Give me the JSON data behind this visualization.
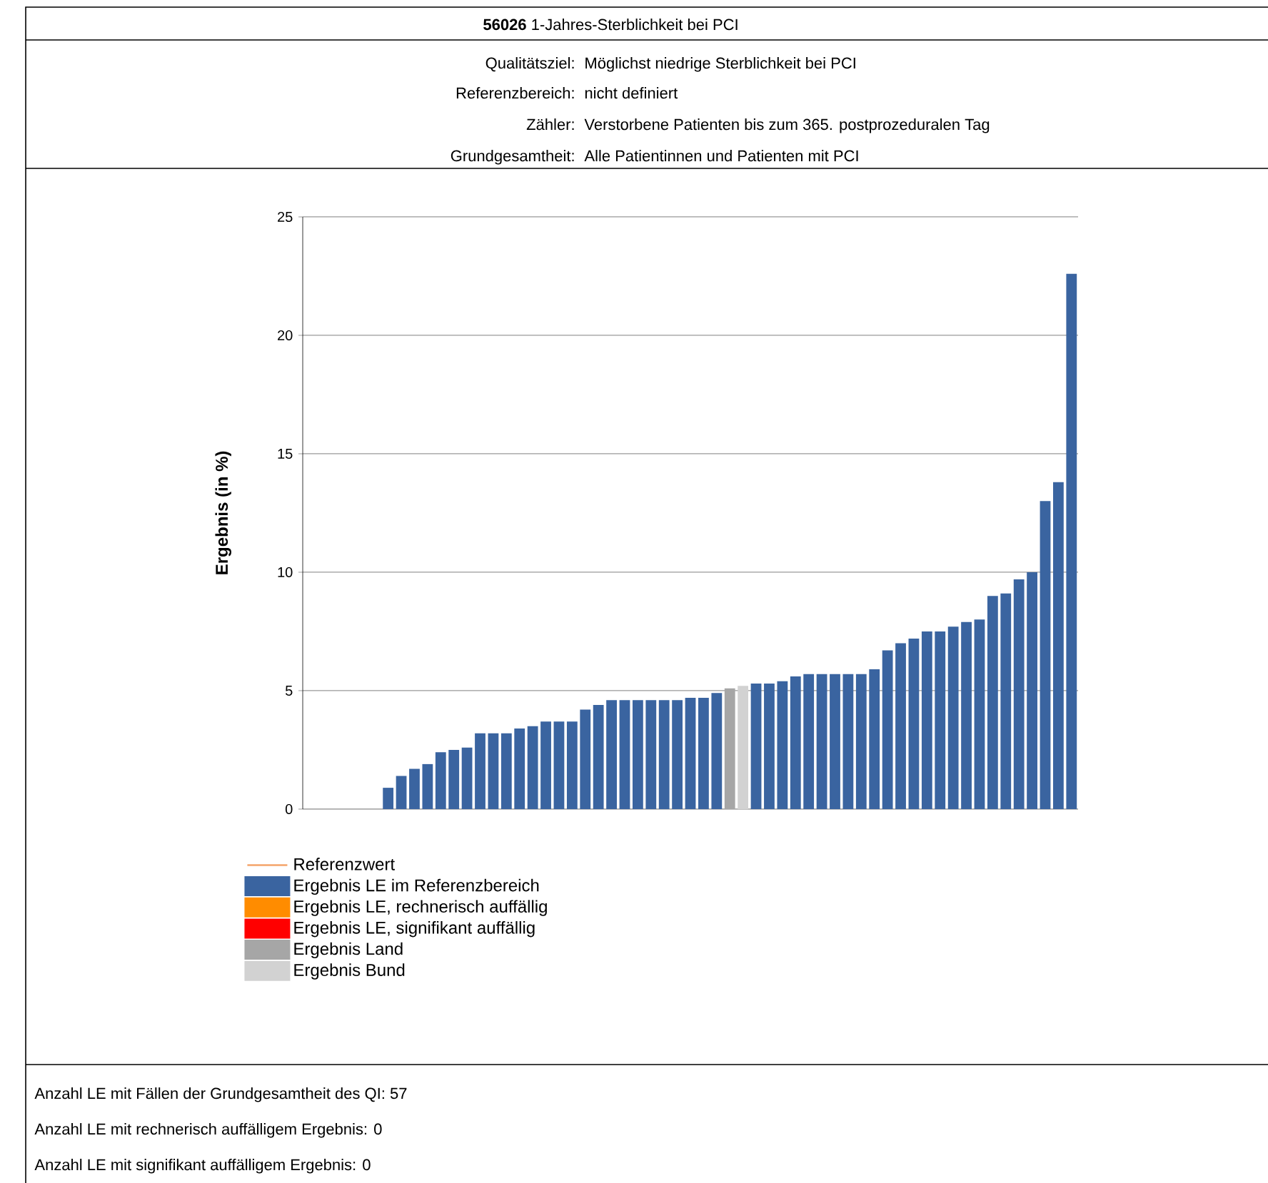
{
  "chart_data": {
    "type": "bar",
    "title": "**56026** 1-Jahres-Sterblichkeit bei PCI",
    "ylabel": "Ergebnis (in %)",
    "annotations": [
      "Qualitätsziel:",
      "Möglichst niedrige Sterblichkeit bei PCI",
      "Referenzbereich:",
      "nicht definiert",
      "Zähler:",
      "Verstorbene Patienten bis zum 365. postprozeduralen Tag",
      "Grundgesamtheit:",
      "Alle Patientinnen und Patienten mit PCI",
      "Anzahl LE mit Fällen der Grundgesamtheit des QI: 57",
      "Anzahl LE mit rechnerisch auffälligem Ergebnis: 0",
      "Anzahl LE mit signifikant auffälligem Ergebnis: 0"
    ],
    "categories": [
      null,
      null,
      null,
      null,
      null,
      null,
      null,
      null,
      null,
      null,
      null,
      null,
      null,
      null,
      null,
      null,
      null,
      null,
      null,
      null,
      null,
      null,
      null,
      null,
      null,
      null,
      null,
      null,
      null,
      null,
      null,
      null,
      null,
      null,
      null,
      null,
      null,
      null,
      null,
      null,
      null,
      null,
      null,
      null,
      null,
      null,
      null,
      null,
      null,
      null,
      null,
      null,
      null,
      null,
      null,
      null,
      null,
      null,
      null
    ],
    "series": [
      {
        "name": "Referenzwert",
        "type": "line",
        "color": "#f4a46a",
        "values": [
          null,
          null,
          null,
          null,
          null,
          null,
          null,
          null,
          null,
          null,
          null,
          null,
          null,
          null,
          null,
          null,
          null,
          null,
          null,
          null,
          null,
          null,
          null,
          null,
          null,
          null,
          null,
          null,
          null,
          null,
          null,
          null,
          null,
          null,
          null,
          null,
          null,
          null,
          null,
          null,
          null,
          null,
          null,
          null,
          null,
          null,
          null,
          null,
          null,
          null,
          null,
          null,
          null,
          null,
          null,
          null,
          null,
          null,
          null
        ]
      },
      {
        "name": "Ergebnis LE im Referenzbereich",
        "color": "#3a64a0",
        "values": [
          0,
          0,
          0,
          0,
          0,
          0,
          0.9,
          1.4,
          1.7,
          1.9,
          2.4,
          2.5,
          2.6,
          3.2,
          3.2,
          3.2,
          3.4,
          3.5,
          3.7,
          3.7,
          3.7,
          4.2,
          4.4,
          4.6,
          4.6,
          4.6,
          4.6,
          4.6,
          4.6,
          4.7,
          4.7,
          4.9,
          null,
          null,
          5.3,
          5.3,
          5.4,
          5.6,
          5.7,
          5.7,
          5.7,
          5.7,
          5.7,
          5.9,
          6.7,
          7.0,
          7.2,
          7.5,
          7.5,
          7.7,
          7.9,
          8.0,
          9.0,
          9.1,
          9.7,
          10.0,
          13.0,
          13.8,
          22.6
        ]
      },
      {
        "name": "Ergebnis LE, rechnerisch auffällig",
        "color": "#ff8c00",
        "values": [
          null,
          null,
          null,
          null,
          null,
          null,
          null,
          null,
          null,
          null,
          null,
          null,
          null,
          null,
          null,
          null,
          null,
          null,
          null,
          null,
          null,
          null,
          null,
          null,
          null,
          null,
          null,
          null,
          null,
          null,
          null,
          null,
          null,
          null,
          null,
          null,
          null,
          null,
          null,
          null,
          null,
          null,
          null,
          null,
          null,
          null,
          null,
          null,
          null,
          null,
          null,
          null,
          null,
          null,
          null,
          null,
          null,
          null,
          null
        ]
      },
      {
        "name": "Ergebnis LE, signifikant auffällig",
        "color": "#ff0000",
        "values": [
          null,
          null,
          null,
          null,
          null,
          null,
          null,
          null,
          null,
          null,
          null,
          null,
          null,
          null,
          null,
          null,
          null,
          null,
          null,
          null,
          null,
          null,
          null,
          null,
          null,
          null,
          null,
          null,
          null,
          null,
          null,
          null,
          null,
          null,
          null,
          null,
          null,
          null,
          null,
          null,
          null,
          null,
          null,
          null,
          null,
          null,
          null,
          null,
          null,
          null,
          null,
          null,
          null,
          null,
          null,
          null,
          null,
          null,
          null
        ]
      },
      {
        "name": "Ergebnis Land",
        "color": "#a6a6a6",
        "values": [
          null,
          null,
          null,
          null,
          null,
          null,
          null,
          null,
          null,
          null,
          null,
          null,
          null,
          null,
          null,
          null,
          null,
          null,
          null,
          null,
          null,
          null,
          null,
          null,
          null,
          null,
          null,
          null,
          null,
          null,
          null,
          null,
          5.1,
          null,
          null,
          null,
          null,
          null,
          null,
          null,
          null,
          null,
          null,
          null,
          null,
          null,
          null,
          null,
          null,
          null,
          null,
          null,
          null,
          null,
          null,
          null,
          null,
          null,
          null
        ]
      },
      {
        "name": "Ergebnis Bund",
        "color": "#d2d2d2",
        "values": [
          null,
          null,
          null,
          null,
          null,
          null,
          null,
          null,
          null,
          null,
          null,
          null,
          null,
          null,
          null,
          null,
          null,
          null,
          null,
          null,
          null,
          null,
          null,
          null,
          null,
          null,
          null,
          null,
          null,
          null,
          null,
          null,
          null,
          5.2,
          null,
          null,
          null,
          null,
          null,
          null,
          null,
          null,
          null,
          null,
          null,
          null,
          null,
          null,
          null,
          null,
          null,
          null,
          null,
          null,
          null,
          null,
          null,
          null,
          null
        ]
      }
    ],
    "ylim": [
      0,
      25
    ],
    "yticks": [
      0,
      5,
      10,
      15,
      20,
      25
    ],
    "grid": "y",
    "legend": "bottom",
    "tick_labels": "y"
  }
}
